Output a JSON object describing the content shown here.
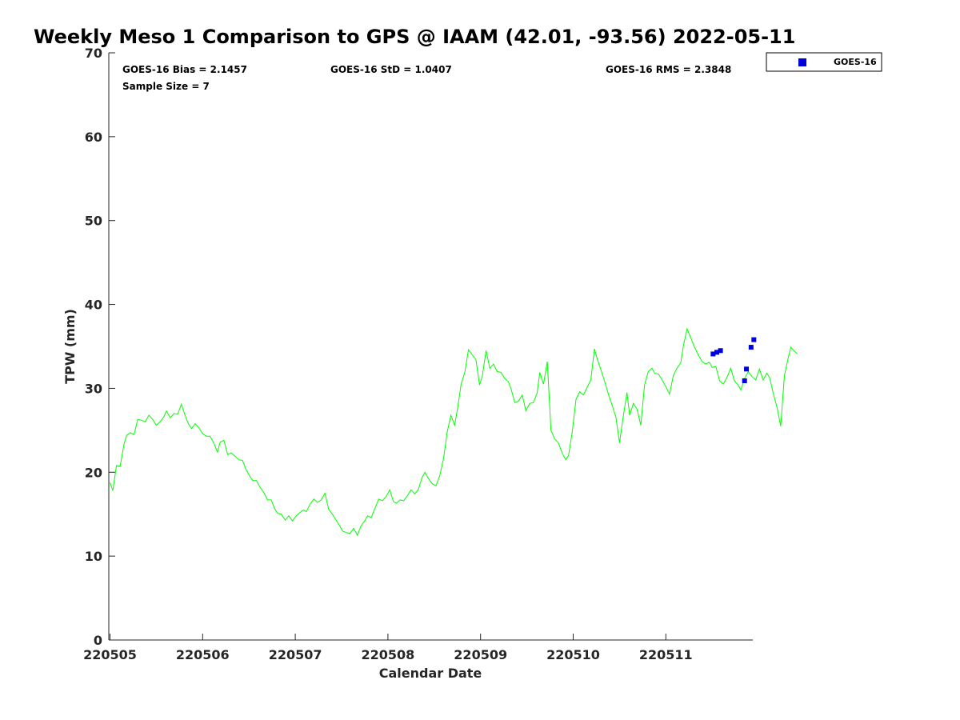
{
  "chart_data": {
    "type": "line",
    "title": "Weekly Meso 1 Comparison to GPS @ IAAM (42.01, -93.56) 2022-05-11",
    "xlabel": "Calendar Date",
    "ylabel": "TPW (mm)",
    "ylim": [
      0,
      70
    ],
    "yticks": [
      "0",
      "10",
      "20",
      "30",
      "40",
      "50",
      "60",
      "70"
    ],
    "xlim": [
      0,
      7
    ],
    "xticks": [
      {
        "x": 0,
        "label": "220505"
      },
      {
        "x": 1,
        "label": "220506"
      },
      {
        "x": 2,
        "label": "220507"
      },
      {
        "x": 3,
        "label": "220508"
      },
      {
        "x": 4,
        "label": "220509"
      },
      {
        "x": 5,
        "label": "220510"
      },
      {
        "x": 6,
        "label": "220511"
      }
    ],
    "grid": false,
    "legend_position": "outside-top-right",
    "stats": {
      "bias": "GOES-16 Bias = 2.1457",
      "std": "GOES-16 StD = 1.0407",
      "rms": "GOES-16 RMS = 2.3848",
      "sample": "Sample Size = 7"
    },
    "series": [
      {
        "kind": "line",
        "color": "#00ff00",
        "points": [
          [
            0.0,
            18.8
          ],
          [
            0.03,
            17.8
          ],
          [
            0.07,
            20.8
          ],
          [
            0.11,
            20.7
          ],
          [
            0.15,
            23.3
          ],
          [
            0.18,
            24.4
          ],
          [
            0.22,
            24.7
          ],
          [
            0.26,
            24.5
          ],
          [
            0.3,
            26.3
          ],
          [
            0.34,
            26.2
          ],
          [
            0.38,
            26.0
          ],
          [
            0.42,
            26.8
          ],
          [
            0.46,
            26.3
          ],
          [
            0.5,
            25.6
          ],
          [
            0.54,
            26.0
          ],
          [
            0.58,
            26.6
          ],
          [
            0.61,
            27.3
          ],
          [
            0.65,
            26.5
          ],
          [
            0.69,
            27.0
          ],
          [
            0.73,
            26.9
          ],
          [
            0.77,
            28.1
          ],
          [
            0.81,
            26.8
          ],
          [
            0.85,
            25.7
          ],
          [
            0.88,
            25.2
          ],
          [
            0.92,
            25.8
          ],
          [
            0.96,
            25.3
          ],
          [
            1.0,
            24.6
          ],
          [
            1.04,
            24.3
          ],
          [
            1.08,
            24.3
          ],
          [
            1.12,
            23.5
          ],
          [
            1.16,
            22.4
          ],
          [
            1.19,
            23.6
          ],
          [
            1.23,
            23.8
          ],
          [
            1.27,
            22.1
          ],
          [
            1.31,
            22.3
          ],
          [
            1.35,
            21.9
          ],
          [
            1.39,
            21.5
          ],
          [
            1.43,
            21.4
          ],
          [
            1.47,
            20.3
          ],
          [
            1.51,
            19.5
          ],
          [
            1.54,
            19.0
          ],
          [
            1.58,
            19.0
          ],
          [
            1.62,
            18.2
          ],
          [
            1.66,
            17.6
          ],
          [
            1.7,
            16.7
          ],
          [
            1.74,
            16.7
          ],
          [
            1.78,
            15.6
          ],
          [
            1.81,
            15.1
          ],
          [
            1.85,
            15.0
          ],
          [
            1.89,
            14.3
          ],
          [
            1.93,
            14.8
          ],
          [
            1.97,
            14.2
          ],
          [
            2.01,
            14.8
          ],
          [
            2.05,
            15.2
          ],
          [
            2.09,
            15.5
          ],
          [
            2.12,
            15.3
          ],
          [
            2.16,
            16.2
          ],
          [
            2.2,
            16.8
          ],
          [
            2.24,
            16.4
          ],
          [
            2.28,
            16.7
          ],
          [
            2.32,
            17.5
          ],
          [
            2.36,
            15.6
          ],
          [
            2.4,
            15.0
          ],
          [
            2.44,
            14.3
          ],
          [
            2.48,
            13.6
          ],
          [
            2.51,
            13.0
          ],
          [
            2.55,
            12.8
          ],
          [
            2.59,
            12.7
          ],
          [
            2.63,
            13.3
          ],
          [
            2.67,
            12.5
          ],
          [
            2.71,
            13.6
          ],
          [
            2.75,
            14.2
          ],
          [
            2.78,
            14.8
          ],
          [
            2.82,
            14.6
          ],
          [
            2.86,
            15.7
          ],
          [
            2.9,
            16.8
          ],
          [
            2.94,
            16.6
          ],
          [
            2.98,
            17.1
          ],
          [
            3.02,
            17.9
          ],
          [
            3.06,
            16.5
          ],
          [
            3.09,
            16.3
          ],
          [
            3.13,
            16.7
          ],
          [
            3.17,
            16.6
          ],
          [
            3.21,
            17.2
          ],
          [
            3.25,
            17.9
          ],
          [
            3.29,
            17.4
          ],
          [
            3.33,
            18.0
          ],
          [
            3.37,
            19.4
          ],
          [
            3.4,
            20.0
          ],
          [
            3.44,
            19.2
          ],
          [
            3.48,
            18.6
          ],
          [
            3.52,
            18.4
          ],
          [
            3.56,
            19.6
          ],
          [
            3.6,
            21.6
          ],
          [
            3.64,
            24.8
          ],
          [
            3.68,
            26.8
          ],
          [
            3.72,
            25.6
          ],
          [
            3.75,
            27.5
          ],
          [
            3.79,
            30.5
          ],
          [
            3.83,
            31.9
          ],
          [
            3.87,
            34.6
          ],
          [
            3.91,
            34.0
          ],
          [
            3.95,
            33.4
          ],
          [
            3.99,
            30.4
          ],
          [
            4.02,
            31.5
          ],
          [
            4.06,
            34.5
          ],
          [
            4.1,
            32.4
          ],
          [
            4.14,
            32.9
          ],
          [
            4.18,
            32.0
          ],
          [
            4.22,
            31.9
          ],
          [
            4.26,
            31.2
          ],
          [
            4.3,
            30.8
          ],
          [
            4.33,
            29.9
          ],
          [
            4.37,
            28.3
          ],
          [
            4.41,
            28.5
          ],
          [
            4.45,
            29.2
          ],
          [
            4.49,
            27.3
          ],
          [
            4.53,
            28.2
          ],
          [
            4.57,
            28.3
          ],
          [
            4.61,
            29.4
          ],
          [
            4.64,
            31.9
          ],
          [
            4.68,
            30.5
          ],
          [
            4.72,
            33.2
          ],
          [
            4.76,
            25.0
          ],
          [
            4.8,
            24.0
          ],
          [
            4.84,
            23.5
          ],
          [
            4.88,
            22.3
          ],
          [
            4.92,
            21.5
          ],
          [
            4.95,
            22.0
          ],
          [
            4.99,
            24.8
          ],
          [
            5.03,
            28.7
          ],
          [
            5.07,
            29.6
          ],
          [
            5.11,
            29.2
          ],
          [
            5.15,
            30.1
          ],
          [
            5.19,
            31.0
          ],
          [
            5.23,
            34.7
          ],
          [
            5.26,
            33.5
          ],
          [
            5.3,
            32.2
          ],
          [
            5.34,
            30.8
          ],
          [
            5.38,
            29.3
          ],
          [
            5.42,
            28.0
          ],
          [
            5.46,
            26.6
          ],
          [
            5.5,
            23.5
          ],
          [
            5.54,
            26.6
          ],
          [
            5.58,
            29.5
          ],
          [
            5.61,
            26.8
          ],
          [
            5.65,
            28.2
          ],
          [
            5.69,
            27.5
          ],
          [
            5.73,
            25.6
          ],
          [
            5.77,
            30.4
          ],
          [
            5.81,
            32.0
          ],
          [
            5.85,
            32.4
          ],
          [
            5.88,
            31.8
          ],
          [
            5.92,
            31.7
          ],
          [
            5.96,
            31.0
          ],
          [
            6.0,
            30.2
          ],
          [
            6.04,
            29.3
          ],
          [
            6.08,
            31.5
          ],
          [
            6.12,
            32.4
          ],
          [
            6.16,
            33.0
          ],
          [
            6.19,
            35.1
          ],
          [
            6.23,
            37.1
          ],
          [
            6.27,
            36.0
          ],
          [
            6.31,
            34.9
          ],
          [
            6.35,
            34.0
          ],
          [
            6.39,
            33.2
          ],
          [
            6.43,
            32.9
          ],
          [
            6.47,
            33.1
          ],
          [
            6.5,
            32.5
          ],
          [
            6.54,
            32.6
          ],
          [
            6.58,
            30.9
          ],
          [
            6.62,
            30.5
          ],
          [
            6.66,
            31.3
          ],
          [
            6.7,
            32.4
          ],
          [
            6.74,
            30.9
          ],
          [
            6.78,
            30.4
          ],
          [
            6.81,
            29.8
          ],
          [
            6.85,
            31.2
          ],
          [
            6.89,
            32.0
          ],
          [
            6.93,
            31.4
          ],
          [
            6.97,
            31.0
          ],
          [
            7.01,
            32.3
          ],
          [
            7.05,
            31.0
          ],
          [
            7.09,
            31.8
          ],
          [
            7.12,
            31.3
          ],
          [
            7.16,
            29.4
          ],
          [
            7.2,
            27.7
          ],
          [
            7.24,
            25.5
          ],
          [
            7.28,
            31.5
          ],
          [
            7.32,
            33.6
          ],
          [
            7.35,
            34.9
          ],
          [
            7.39,
            34.4
          ],
          [
            7.42,
            34.1
          ]
        ]
      },
      {
        "kind": "scatter",
        "name": "GOES-16",
        "color": "#0000dd",
        "points": [
          [
            6.51,
            34.1
          ],
          [
            6.55,
            34.3
          ],
          [
            6.59,
            34.5
          ],
          [
            6.85,
            30.9
          ],
          [
            6.87,
            32.3
          ],
          [
            6.92,
            34.9
          ],
          [
            6.95,
            35.8
          ]
        ]
      }
    ]
  }
}
